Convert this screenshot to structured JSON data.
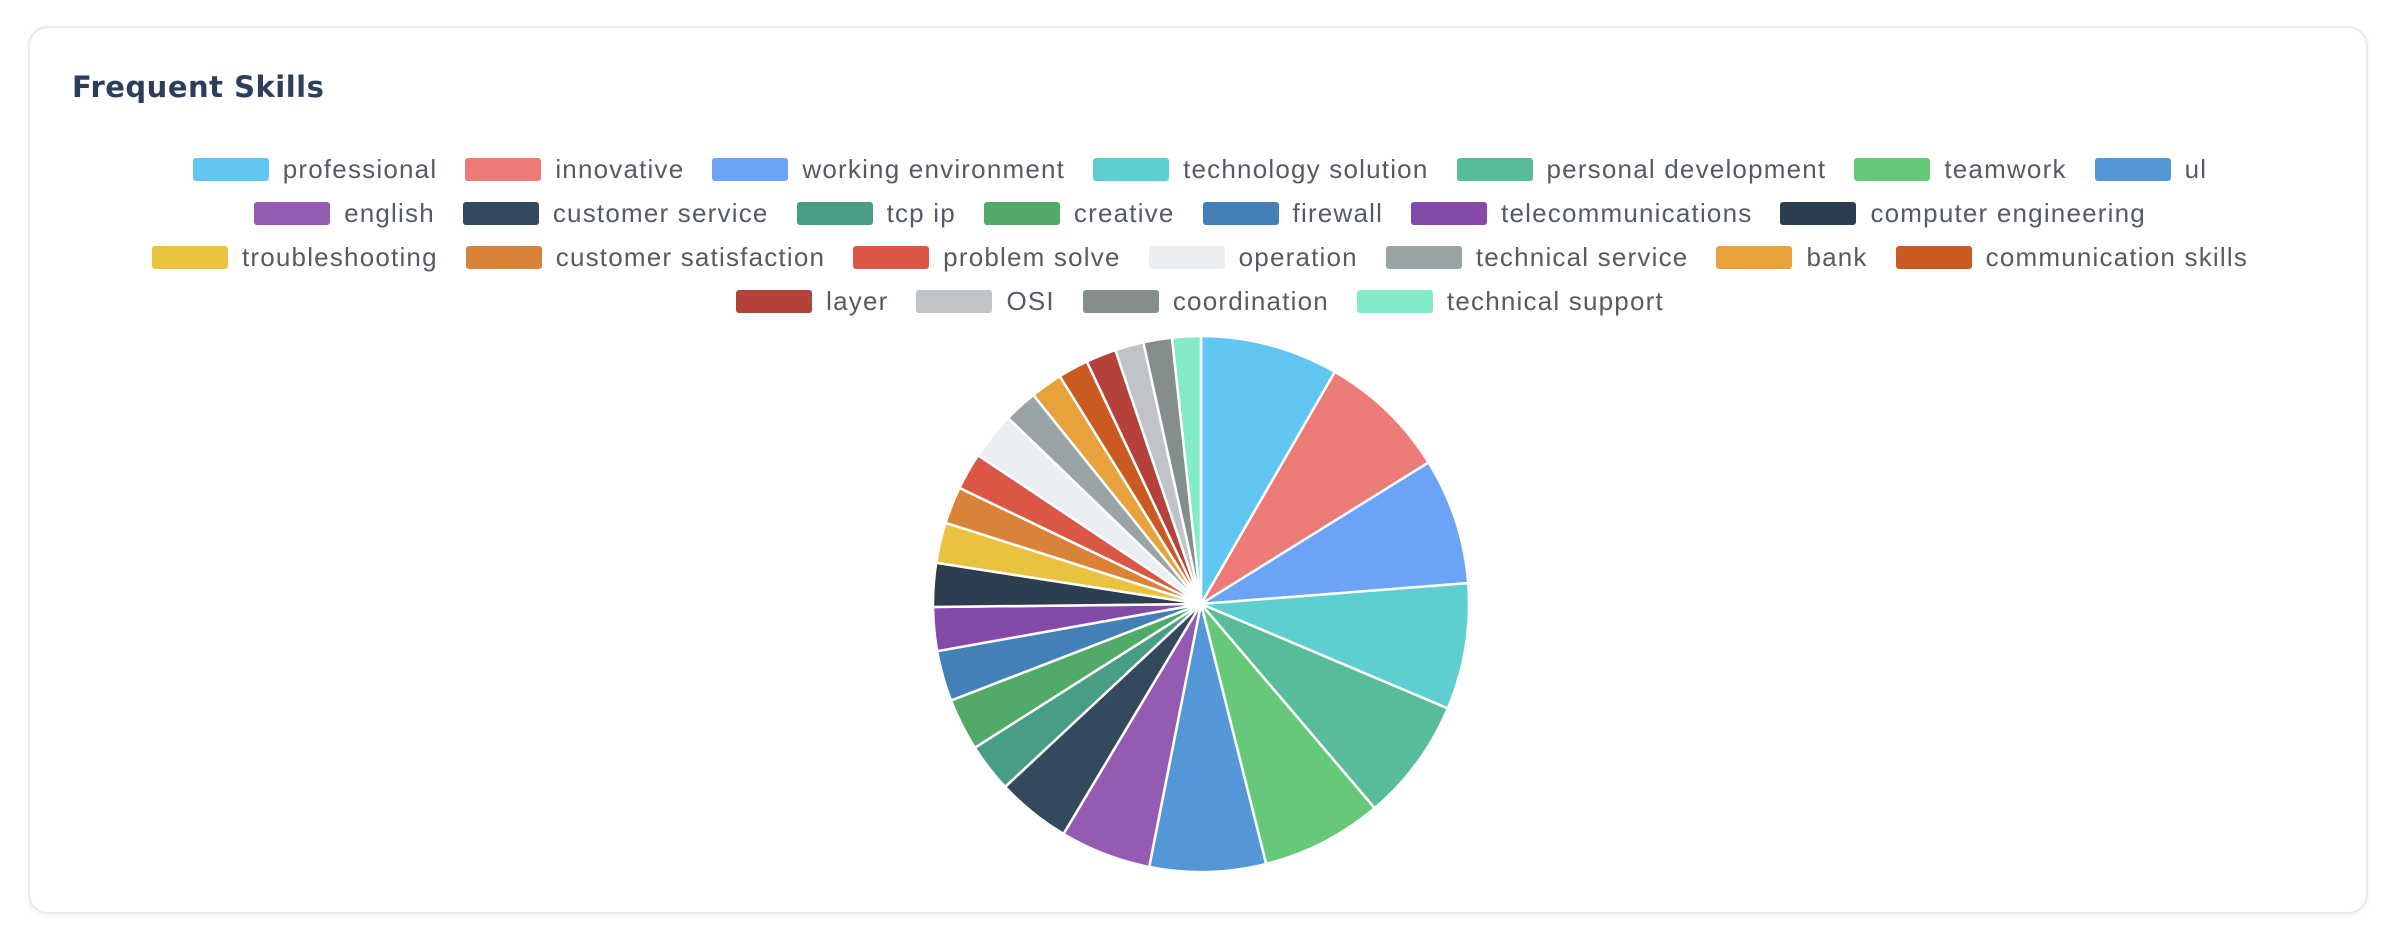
{
  "card": {
    "title": "Frequent Skills"
  },
  "chart_data": {
    "type": "pie",
    "legend_position": "top",
    "slices": [
      {
        "label": "professional",
        "value": 8.2,
        "color": "#62c6f2"
      },
      {
        "label": "innovative",
        "value": 7.7,
        "color": "#ec7a77"
      },
      {
        "label": "working environment",
        "value": 7.5,
        "color": "#6ba3f6"
      },
      {
        "label": "technology solution",
        "value": 7.5,
        "color": "#5ecfd0"
      },
      {
        "label": "personal development",
        "value": 7.3,
        "color": "#58bb9a"
      },
      {
        "label": "teamwork",
        "value": 7.2,
        "color": "#66c97a"
      },
      {
        "label": "ul",
        "value": 6.9,
        "color": "#5397d6"
      },
      {
        "label": "english",
        "value": 5.4,
        "color": "#955bb3"
      },
      {
        "label": "customer service",
        "value": 4.4,
        "color": "#34495e"
      },
      {
        "label": "tcp ip",
        "value": 2.9,
        "color": "#489d85"
      },
      {
        "label": "creative",
        "value": 3.1,
        "color": "#52aa68"
      },
      {
        "label": "firewall",
        "value": 3.0,
        "color": "#4280b7"
      },
      {
        "label": "telecommunications",
        "value": 2.6,
        "color": "#8549aa"
      },
      {
        "label": "computer engineering",
        "value": 2.6,
        "color": "#2c3e50"
      },
      {
        "label": "troubleshooting",
        "value": 2.4,
        "color": "#e9c340"
      },
      {
        "label": "customer satisfaction",
        "value": 2.2,
        "color": "#d98339"
      },
      {
        "label": "problem solve",
        "value": 2.2,
        "color": "#d95744"
      },
      {
        "label": "operation",
        "value": 2.8,
        "color": "#eceff1"
      },
      {
        "label": "technical service",
        "value": 2.0,
        "color": "#98a4a6"
      },
      {
        "label": "bank",
        "value": 1.9,
        "color": "#e8a23b"
      },
      {
        "label": "communication skills",
        "value": 1.8,
        "color": "#c95a22"
      },
      {
        "label": "layer",
        "value": 1.8,
        "color": "#b5423a"
      },
      {
        "label": "OSI",
        "value": 1.7,
        "color": "#c0c4c8"
      },
      {
        "label": "coordination",
        "value": 1.7,
        "color": "#838e8d"
      },
      {
        "label": "technical support",
        "value": 1.7,
        "color": "#83ebc9"
      }
    ]
  }
}
